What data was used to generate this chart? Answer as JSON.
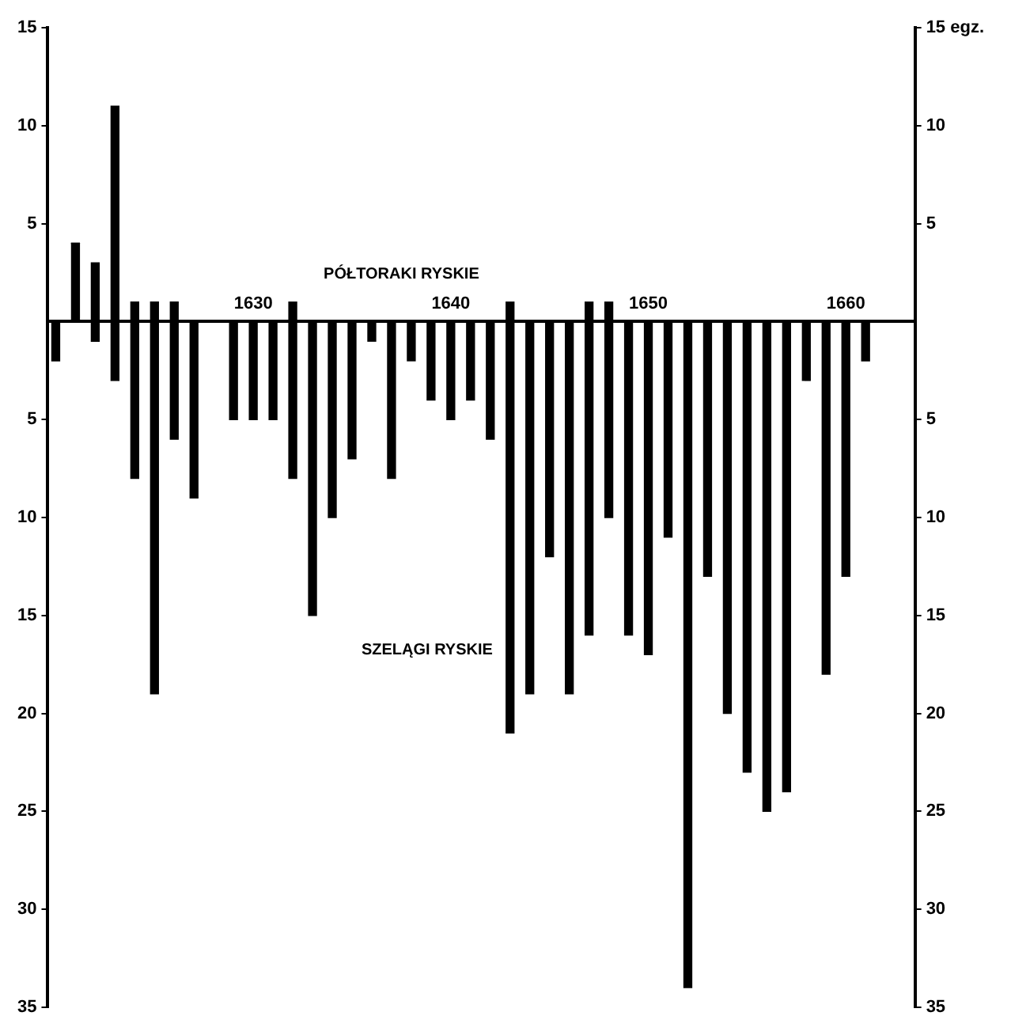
{
  "chart_data": {
    "type": "bar",
    "stacked": true,
    "x": [
      1620,
      1621,
      1622,
      1623,
      1624,
      1625,
      1626,
      1627,
      1629,
      1630,
      1631,
      1632,
      1633,
      1634,
      1635,
      1636,
      1637,
      1638,
      1639,
      1640,
      1641,
      1642,
      1643,
      1644,
      1645,
      1646,
      1647,
      1648,
      1649,
      1650,
      1651,
      1652,
      1653,
      1654,
      1655,
      1656,
      1657,
      1658,
      1659,
      1660,
      1661
    ],
    "series": [
      {
        "name": "PÓŁTORAKI RYSKIE",
        "color": "#000000",
        "values": [
          0,
          4,
          3,
          11,
          1,
          1,
          1,
          0,
          0,
          0,
          0,
          1,
          0,
          0,
          0,
          0,
          0,
          0,
          0,
          0,
          0,
          0,
          1,
          0,
          0,
          0,
          1,
          1,
          0,
          0,
          0,
          0,
          0,
          0,
          0,
          0,
          0,
          0,
          0,
          0,
          0
        ]
      },
      {
        "name": "SZELĄGI RYSKIE",
        "color": "#000000",
        "values": [
          -2,
          0,
          -1,
          -3,
          -8,
          -19,
          -6,
          -9,
          -5,
          -5,
          -5,
          -8,
          -15,
          -10,
          -7,
          -1,
          -8,
          -2,
          -4,
          -5,
          -4,
          -6,
          -21,
          -19,
          -12,
          -19,
          -16,
          -10,
          -16,
          -17,
          -11,
          -34,
          -13,
          -20,
          -23,
          -25,
          -24,
          -3,
          -18,
          -13,
          -2
        ]
      }
    ],
    "xlim": [
      1619.6,
      1663.5
    ],
    "xticks": [
      1630,
      1640,
      1650,
      1660
    ],
    "ylim": [
      -35,
      15
    ],
    "yticks": [
      {
        "value": -35,
        "label": "35"
      },
      {
        "value": -30,
        "label": "30"
      },
      {
        "value": -25,
        "label": "25"
      },
      {
        "value": -20,
        "label": "20"
      },
      {
        "value": -15,
        "label": "15"
      },
      {
        "value": -10,
        "label": "10"
      },
      {
        "value": -5,
        "label": "5"
      },
      5,
      10,
      15
    ],
    "y2lim": [
      -35,
      15
    ],
    "y2ticks": [
      {
        "value": -35,
        "label": "35"
      },
      {
        "value": -30,
        "label": "30"
      },
      {
        "value": -25,
        "label": "25"
      },
      {
        "value": -20,
        "label": "20"
      },
      {
        "value": -15,
        "label": "15"
      },
      {
        "value": -10,
        "label": "10"
      },
      {
        "value": -5,
        "label": "5"
      },
      5,
      10,
      {
        "value": 15,
        "label": "15 egz."
      }
    ],
    "grid": false,
    "legend": false
  }
}
